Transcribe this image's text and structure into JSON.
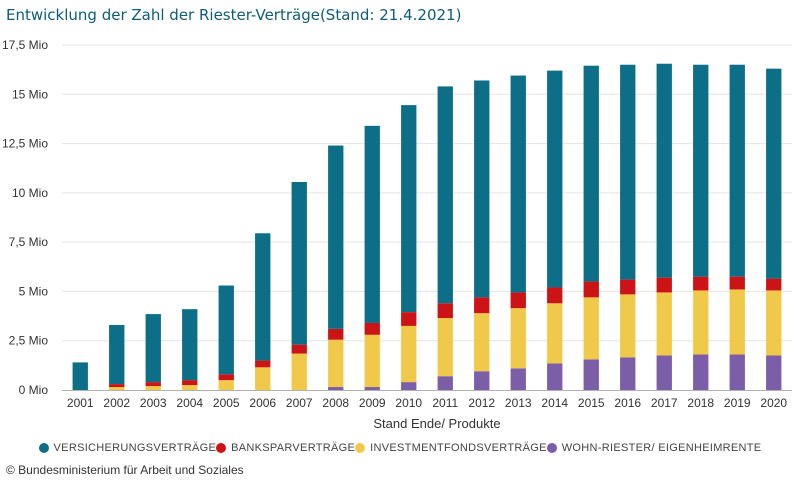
{
  "title": "Entwicklung der Zahl der Riester-Verträge(Stand: 21.4.2021)",
  "copyright": "© Bundesministerium für Arbeit und Soziales",
  "chart_data": {
    "type": "bar",
    "stacked": true,
    "title": "Entwicklung der Zahl der Riester-Verträge(Stand: 21.4.2021)",
    "xlabel": "Stand Ende/ Produkte",
    "ylabel": "",
    "ylim": [
      0,
      17.5
    ],
    "yticks": [
      0,
      2.5,
      5,
      7.5,
      10,
      12.5,
      15,
      17.5
    ],
    "ytick_labels": [
      "0 Mio",
      "2,5 Mio",
      "5 Mio",
      "7,5 Mio",
      "10 Mio",
      "12,5 Mio",
      "15 Mio",
      "17,5 Mio"
    ],
    "grid": true,
    "legend_position": "bottom",
    "categories": [
      "2001",
      "2002",
      "2003",
      "2004",
      "2005",
      "2006",
      "2007",
      "2008",
      "2009",
      "2010",
      "2011",
      "2012",
      "2013",
      "2014",
      "2015",
      "2016",
      "2017",
      "2018",
      "2019",
      "2020"
    ],
    "series": [
      {
        "name": "WOHN-RIESTER/ EIGENHEIMRENTE",
        "color": "#7b5ea7",
        "values": [
          0,
          0,
          0,
          0,
          0,
          0,
          0,
          0.15,
          0.15,
          0.4,
          0.7,
          0.95,
          1.1,
          1.35,
          1.55,
          1.65,
          1.75,
          1.8,
          1.8,
          1.75
        ]
      },
      {
        "name": "INVESTMENTFONDSVERTRÄGE",
        "color": "#f0c94a",
        "values": [
          0,
          0.15,
          0.2,
          0.25,
          0.5,
          1.15,
          1.85,
          2.4,
          2.65,
          2.85,
          2.95,
          2.95,
          3.05,
          3.05,
          3.15,
          3.2,
          3.2,
          3.25,
          3.3,
          3.3
        ]
      },
      {
        "name": "BANKSPARVERTRÄGE",
        "color": "#cc1417",
        "values": [
          0,
          0.15,
          0.2,
          0.25,
          0.3,
          0.35,
          0.45,
          0.55,
          0.6,
          0.7,
          0.75,
          0.8,
          0.8,
          0.8,
          0.8,
          0.75,
          0.75,
          0.7,
          0.65,
          0.6
        ]
      },
      {
        "name": "VERSICHERUNGSVERTRÄGE",
        "color": "#0d6e87",
        "values": [
          1.4,
          3.0,
          3.45,
          3.6,
          4.5,
          6.45,
          8.25,
          9.3,
          10.0,
          10.5,
          11.0,
          11.0,
          11.0,
          11.0,
          10.95,
          10.9,
          10.85,
          10.75,
          10.75,
          10.65
        ]
      }
    ],
    "legend_order": [
      "VERSICHERUNGSVERTRÄGE",
      "BANKSPARVERTRÄGE",
      "INVESTMENTFONDSVERTRÄGE",
      "WOHN-RIESTER/ EIGENHEIMRENTE"
    ]
  }
}
